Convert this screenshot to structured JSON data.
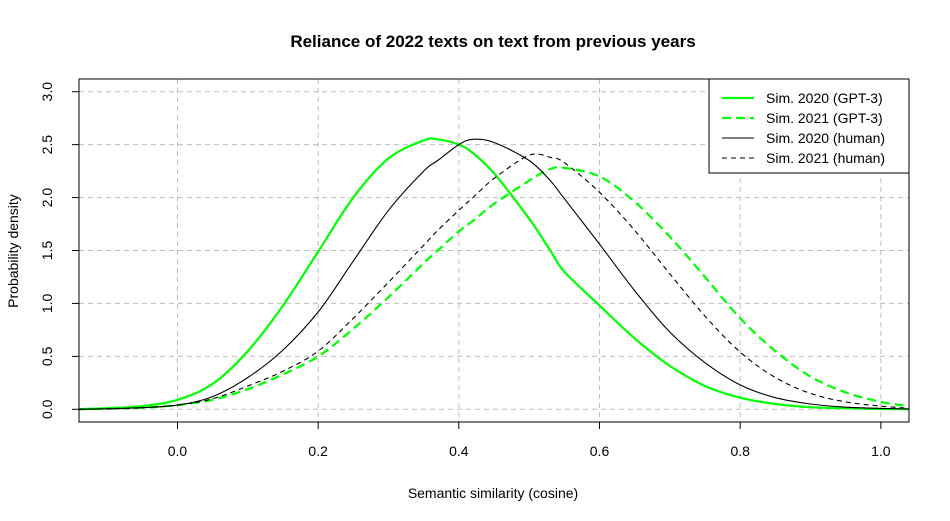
{
  "chart_data": {
    "type": "line",
    "title": "Reliance of 2022 texts on text from previous years",
    "xlabel": "Semantic similarity (cosine)",
    "ylabel": "Probability density",
    "xlim": [
      -0.14,
      1.04
    ],
    "ylim": [
      -0.12,
      3.12
    ],
    "x_ticks": [
      0.0,
      0.2,
      0.4,
      0.6,
      0.8,
      1.0
    ],
    "x_tick_labels": [
      "0.0",
      "0.2",
      "0.4",
      "0.6",
      "0.8",
      "1.0"
    ],
    "y_ticks": [
      0.0,
      0.5,
      1.0,
      1.5,
      2.0,
      2.5,
      3.0
    ],
    "y_tick_labels": [
      "0.0",
      "0.5",
      "1.0",
      "1.5",
      "2.0",
      "2.5",
      "3.0"
    ],
    "grid": true,
    "legend_position": "top-right",
    "x": [
      -0.14,
      -0.1,
      -0.05,
      0.0,
      0.05,
      0.1,
      0.15,
      0.2,
      0.25,
      0.3,
      0.35,
      0.37,
      0.4,
      0.42,
      0.45,
      0.5,
      0.53,
      0.55,
      0.6,
      0.65,
      0.7,
      0.75,
      0.8,
      0.85,
      0.9,
      0.95,
      1.0,
      1.04
    ],
    "series": [
      {
        "name": "Sim. 2020 (GPT-3)",
        "color": "#00ff00",
        "dash": "solid",
        "width": "thick",
        "values": [
          0.002,
          0.01,
          0.03,
          0.09,
          0.24,
          0.55,
          0.98,
          1.49,
          2.0,
          2.37,
          2.54,
          2.55,
          2.5,
          2.42,
          2.23,
          1.8,
          1.5,
          1.3,
          0.98,
          0.67,
          0.41,
          0.22,
          0.11,
          0.05,
          0.02,
          0.01,
          0.003,
          0.001
        ]
      },
      {
        "name": "Sim. 2021 (GPT-3)",
        "color": "#00ff00",
        "dash": "dashed",
        "width": "thick",
        "values": [
          0.0,
          0.005,
          0.015,
          0.04,
          0.09,
          0.19,
          0.33,
          0.5,
          0.76,
          1.06,
          1.38,
          1.5,
          1.68,
          1.78,
          1.94,
          2.16,
          2.27,
          2.28,
          2.2,
          1.96,
          1.63,
          1.25,
          0.86,
          0.55,
          0.31,
          0.16,
          0.07,
          0.03
        ]
      },
      {
        "name": "Sim. 2020 (human)",
        "color": "#000000",
        "dash": "solid",
        "width": "thin",
        "values": [
          0.0,
          0.005,
          0.015,
          0.04,
          0.12,
          0.3,
          0.56,
          0.92,
          1.4,
          1.88,
          2.25,
          2.35,
          2.5,
          2.55,
          2.52,
          2.35,
          2.16,
          1.99,
          1.56,
          1.12,
          0.73,
          0.44,
          0.23,
          0.11,
          0.05,
          0.02,
          0.008,
          0.003
        ]
      },
      {
        "name": "Sim. 2021 (human)",
        "color": "#000000",
        "dash": "dashed",
        "width": "thin",
        "values": [
          0.0,
          0.005,
          0.015,
          0.04,
          0.1,
          0.22,
          0.36,
          0.55,
          0.86,
          1.2,
          1.55,
          1.69,
          1.88,
          2.0,
          2.18,
          2.4,
          2.38,
          2.33,
          2.05,
          1.69,
          1.28,
          0.88,
          0.54,
          0.3,
          0.15,
          0.07,
          0.03,
          0.01
        ]
      }
    ]
  }
}
